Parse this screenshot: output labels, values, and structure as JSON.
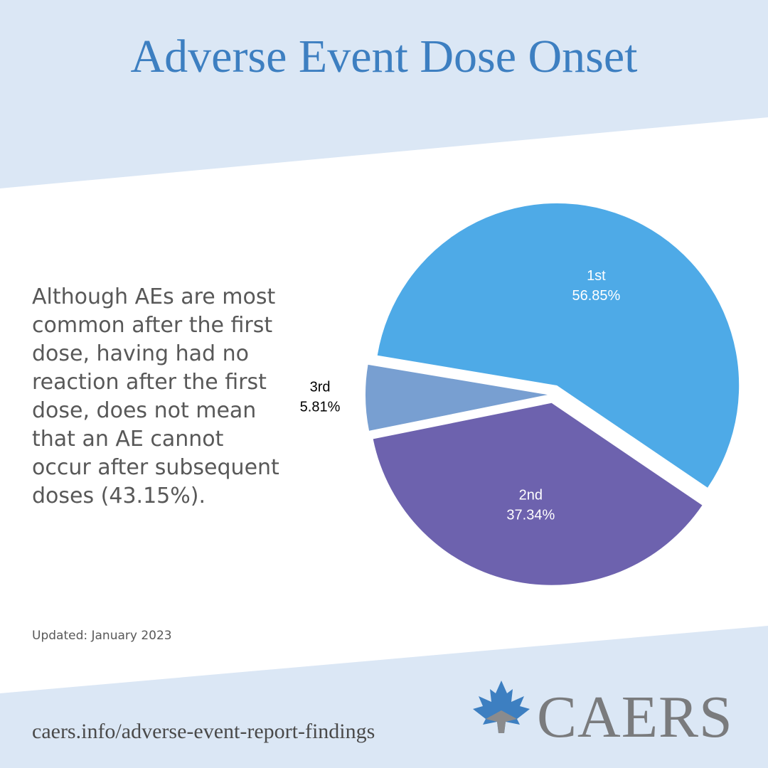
{
  "header": {
    "title": "Adverse Event Dose Onset"
  },
  "description": "Although AEs are most common after the first dose, having had no reaction after the first dose, does not mean that an AE cannot occur after subsequent doses (43.15%).",
  "chart_data": {
    "type": "pie",
    "categories": [
      "1st",
      "2nd",
      "3rd"
    ],
    "values": [
      56.85,
      37.34,
      5.81
    ],
    "value_labels": [
      "56.85%",
      "37.34%",
      "5.81%"
    ],
    "colors": [
      "#4eaae7",
      "#6d62ae",
      "#789fd1"
    ]
  },
  "footer": {
    "updated": "Updated: January 2023",
    "url": "caers.info/adverse-event-report-findings",
    "logo": "CAERS"
  }
}
